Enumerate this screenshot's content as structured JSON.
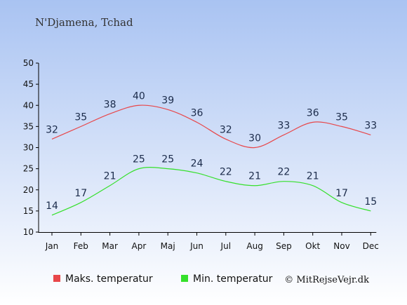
{
  "title": "N'Djamena, Tchad",
  "credit": "© MitRejseVejr.dk",
  "colors": {
    "background_top": "#a9c3f2",
    "background_bottom": "#ffffff",
    "max_series": "#e8474a",
    "min_series": "#35e02b",
    "axis": "#000000"
  },
  "chart_data": {
    "type": "line",
    "categories": [
      "Jan",
      "Feb",
      "Mar",
      "Apr",
      "Maj",
      "Jun",
      "Jul",
      "Aug",
      "Sep",
      "Okt",
      "Nov",
      "Dec"
    ],
    "ylim": [
      10,
      50
    ],
    "yticks": [
      10,
      15,
      20,
      25,
      30,
      35,
      40,
      45,
      50
    ],
    "grid": false,
    "legend_position": "bottom",
    "series": [
      {
        "name": "Maks. temperatur",
        "color": "#e8474a",
        "values": [
          32,
          35,
          38,
          40,
          39,
          36,
          32,
          30,
          33,
          36,
          35,
          33
        ]
      },
      {
        "name": "Min. temperatur",
        "color": "#35e02b",
        "values": [
          14,
          17,
          21,
          25,
          25,
          24,
          22,
          21,
          22,
          21,
          17,
          15
        ]
      }
    ]
  }
}
